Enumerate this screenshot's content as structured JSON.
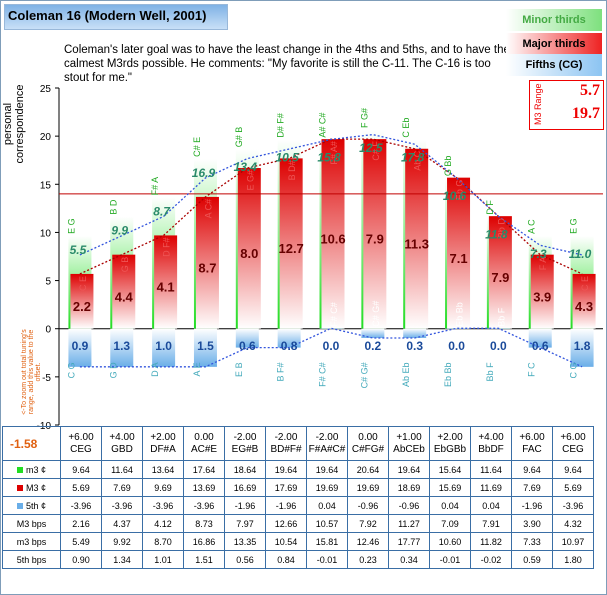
{
  "title": "Coleman 16 (Modern Well, 2001)",
  "description": "Coleman's later goal was to have the least change in the 4ths and 5ths, and to have the calmest M3rds possible. He comments: \"My favorite is still the C-11. The C-16 is too stout for me.\"",
  "legend": [
    {
      "label": "Minor thirds",
      "color": "#3a3"
    },
    {
      "label": "Major thirds",
      "color": "#c00"
    },
    {
      "label": "Fifths (CG)",
      "color": "#225"
    }
  ],
  "range": {
    "label": "M3 Range",
    "low": "5.7",
    "high": "19.7"
  },
  "note": "<-To zoom out total tuning's range, add this value to the offset.",
  "offset_value": "-1.58",
  "colors": {
    "minor": "#22dd22",
    "major": "#dd0000",
    "fifth": "#6aaee8",
    "redline": "#c00000",
    "dotted": "#3355dd"
  },
  "chart_data": {
    "type": "bar",
    "ylabel": "personal correspondence",
    "ylim": [
      -10,
      25
    ],
    "yticks": [
      25,
      20,
      15,
      10,
      5,
      0,
      -5,
      -10
    ],
    "reference_line": 14,
    "categories": [
      "+6.00\nCEG",
      "+4.00\nGBD",
      "+2.00\nDF#A",
      "0.00\nAC#E",
      "-2.00\nEG#B",
      "-2.00\nBD#F#",
      "-2.00\nF#A#C#",
      "0.00\nC#FG#",
      "+1.00\nAbCEb",
      "+2.00\nEbGBb",
      "+4.00\nBbDF",
      "+6.00\nFAC",
      "+6.00\nCEG"
    ],
    "minor_labels": [
      "E G",
      "B D",
      "F# A",
      "C# E",
      "G# B",
      "D# F#",
      "A# C#",
      "F G#",
      "C Eb",
      "G Bb",
      "D F",
      "A C",
      "E G"
    ],
    "major_labels": [
      "C E",
      "G B",
      "D F#",
      "A C#",
      "E G#",
      "B D#",
      "F# A#",
      "C# F",
      "Ab C",
      "Eb G",
      "Bb D",
      "F A",
      "C E"
    ],
    "fifth_labels": [
      "C G",
      "G D",
      "D A",
      "A E",
      "E B",
      "B F#",
      "F# C#",
      "C# G#",
      "Ab Eb",
      "Eb Bb",
      "Bb F",
      "F C",
      "C G"
    ],
    "inner_labels": [
      "",
      "",
      "",
      "",
      "",
      "",
      "F# C#",
      "C# G#",
      "",
      "Eb Bb",
      "Bb F",
      "",
      ""
    ],
    "series": [
      {
        "name": "m3 ¢",
        "values": [
          9.64,
          11.64,
          13.64,
          17.64,
          18.64,
          19.64,
          19.64,
          20.64,
          19.64,
          15.64,
          11.64,
          9.64,
          9.64
        ]
      },
      {
        "name": "M3 ¢",
        "values": [
          5.69,
          7.69,
          9.69,
          13.69,
          16.69,
          17.69,
          19.69,
          19.69,
          18.69,
          15.69,
          11.69,
          7.69,
          5.69
        ]
      },
      {
        "name": "5th ¢",
        "values": [
          -3.96,
          -3.96,
          -3.96,
          -3.96,
          -1.96,
          -1.96,
          0.04,
          -0.96,
          -0.96,
          0.04,
          0.04,
          -1.96,
          -3.96
        ]
      },
      {
        "name": "M3 bps",
        "values": [
          2.16,
          4.37,
          4.12,
          8.73,
          7.97,
          12.66,
          10.57,
          7.92,
          11.27,
          7.09,
          7.91,
          3.9,
          4.32
        ]
      },
      {
        "name": "m3 bps",
        "values": [
          5.49,
          9.92,
          8.7,
          16.86,
          13.35,
          10.54,
          15.81,
          12.46,
          17.77,
          10.6,
          11.82,
          7.33,
          10.97
        ]
      },
      {
        "name": "5th bps",
        "values": [
          0.9,
          1.34,
          1.01,
          1.51,
          0.56,
          0.84,
          -0.01,
          0.23,
          0.34,
          -0.01,
          -0.02,
          0.59,
          1.8
        ]
      }
    ],
    "major_bps_display": [
      "2.2",
      "4.4",
      "4.1",
      "8.7",
      "8.0",
      "12.7",
      "10.6",
      "7.9",
      "11.3",
      "7.1",
      "7.9",
      "3.9",
      "4.3"
    ],
    "minor_bps_display": [
      "5.5",
      "9.9",
      "8.7",
      "16.9",
      "13.4",
      "10.5",
      "15.8",
      "12.5",
      "17.8",
      "10.6",
      "11.8",
      "7.3",
      "11.0"
    ],
    "fifth_bps_display": [
      "0.9",
      "1.3",
      "1.0",
      "1.5",
      "0.6",
      "0.8",
      "0.0",
      "0.2",
      "0.3",
      "0.0",
      "0.0",
      "0.6",
      "1.8"
    ],
    "table_rows": [
      {
        "label": "m3 ¢",
        "swatch": "#22dd22",
        "cells": [
          "9.64",
          "11.64",
          "13.64",
          "17.64",
          "18.64",
          "19.64",
          "19.64",
          "20.64",
          "19.64",
          "15.64",
          "11.64",
          "9.64",
          "9.64"
        ]
      },
      {
        "label": "M3 ¢",
        "swatch": "#dd0000",
        "cells": [
          "5.69",
          "7.69",
          "9.69",
          "13.69",
          "16.69",
          "17.69",
          "19.69",
          "19.69",
          "18.69",
          "15.69",
          "11.69",
          "7.69",
          "5.69"
        ]
      },
      {
        "label": "5th ¢",
        "swatch": "#6aaee8",
        "cells": [
          "-3.96",
          "-3.96",
          "-3.96",
          "-3.96",
          "-1.96",
          "-1.96",
          "0.04",
          "-0.96",
          "-0.96",
          "0.04",
          "0.04",
          "-1.96",
          "-3.96"
        ]
      },
      {
        "label": "M3 bps",
        "swatch": "",
        "cells": [
          "2.16",
          "4.37",
          "4.12",
          "8.73",
          "7.97",
          "12.66",
          "10.57",
          "7.92",
          "11.27",
          "7.09",
          "7.91",
          "3.90",
          "4.32"
        ]
      },
      {
        "label": "m3 bps",
        "swatch": "",
        "cells": [
          "5.49",
          "9.92",
          "8.70",
          "16.86",
          "13.35",
          "10.54",
          "15.81",
          "12.46",
          "17.77",
          "10.60",
          "11.82",
          "7.33",
          "10.97"
        ]
      },
      {
        "label": "5th bps",
        "swatch": "",
        "cells": [
          "0.90",
          "1.34",
          "1.01",
          "1.51",
          "0.56",
          "0.84",
          "-0.01",
          "0.23",
          "0.34",
          "-0.01",
          "-0.02",
          "0.59",
          "1.80"
        ]
      }
    ]
  }
}
